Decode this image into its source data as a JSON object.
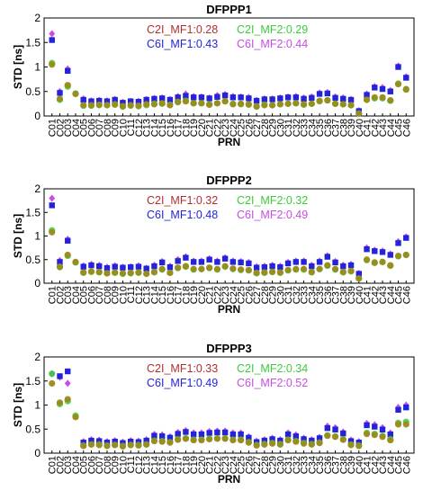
{
  "colors": {
    "C2I_MF1": "#b03030",
    "C6I_MF1": "#2323dc",
    "C2I_MF2": "#3ccc3c",
    "C6I_MF2": "#c84ce6",
    "overlap_fill": "#9c8a1e",
    "axis": "#000000"
  },
  "chart_data": [
    {
      "type": "scatter",
      "title": "DFPPP1",
      "xlabel": "PRN",
      "ylabel": "STD [ns]",
      "ylim": [
        0,
        2
      ],
      "yticks": [
        "0",
        "0.5",
        "1",
        "1.5",
        "2"
      ],
      "grid": false,
      "legend": [
        {
          "key": "C2I_MF1",
          "label": "C2I_MF1:0.28"
        },
        {
          "key": "C2I_MF2",
          "label": "C2I_MF2:0.29"
        },
        {
          "key": "C6I_MF1",
          "label": "C6I_MF1:0.43"
        },
        {
          "key": "C6I_MF2",
          "label": "C6I_MF2:0.44"
        }
      ],
      "categories": [
        "C01",
        "C02",
        "C03",
        "C04",
        "C05",
        "C06",
        "C07",
        "C08",
        "C09",
        "C10",
        "C11",
        "C12",
        "C13",
        "C14",
        "C15",
        "C16",
        "C17",
        "C18",
        "C19",
        "C20",
        "C21",
        "C22",
        "C23",
        "C24",
        "C25",
        "C26",
        "C27",
        "C28",
        "C29",
        "C30",
        "C31",
        "C32",
        "C33",
        "C34",
        "C35",
        "C36",
        "C37",
        "C38",
        "C39",
        "C40",
        "C41",
        "C42",
        "C43",
        "C44",
        "C45",
        "C46"
      ],
      "series": [
        {
          "key": "C2I_MF1",
          "values": [
            1.05,
            0.35,
            0.63,
            0.45,
            0.22,
            0.22,
            0.23,
            0.22,
            0.24,
            0.2,
            0.22,
            0.21,
            0.24,
            0.24,
            0.26,
            0.22,
            0.29,
            0.3,
            0.26,
            0.26,
            0.23,
            0.26,
            0.3,
            0.24,
            0.25,
            0.24,
            0.2,
            0.22,
            0.22,
            0.24,
            0.25,
            0.26,
            0.24,
            0.25,
            0.31,
            0.32,
            0.25,
            0.24,
            0.22,
            0.05,
            0.33,
            0.38,
            0.38,
            0.32,
            0.65,
            0.54
          ]
        },
        {
          "key": "C2I_MF2",
          "values": [
            1.08,
            0.33,
            0.6,
            0.46,
            0.21,
            0.21,
            0.22,
            0.22,
            0.23,
            0.19,
            0.21,
            0.2,
            0.22,
            0.25,
            0.25,
            0.23,
            0.28,
            0.31,
            0.26,
            0.26,
            0.24,
            0.26,
            0.3,
            0.25,
            0.24,
            0.23,
            0.19,
            0.23,
            0.22,
            0.24,
            0.25,
            0.26,
            0.23,
            0.25,
            0.3,
            0.32,
            0.25,
            0.24,
            0.22,
            0.05,
            0.33,
            0.36,
            0.36,
            0.31,
            0.66,
            0.55
          ]
        },
        {
          "key": "C6I_MF1",
          "values": [
            1.55,
            0.47,
            0.92,
            null,
            0.33,
            0.3,
            0.31,
            0.3,
            0.33,
            0.27,
            0.3,
            0.29,
            0.33,
            0.35,
            0.36,
            0.33,
            0.38,
            0.41,
            0.38,
            0.38,
            0.36,
            0.39,
            0.42,
            0.38,
            0.38,
            0.36,
            0.31,
            0.34,
            0.34,
            0.36,
            0.38,
            0.38,
            0.35,
            0.37,
            0.45,
            0.46,
            0.37,
            0.35,
            0.33,
            0.1,
            0.43,
            0.58,
            0.55,
            0.5,
            1.0,
            0.78
          ]
        },
        {
          "key": "C6I_MF2",
          "values": [
            1.68,
            0.5,
            0.96,
            null,
            0.35,
            0.31,
            0.32,
            0.31,
            0.34,
            0.28,
            0.3,
            0.3,
            0.34,
            0.36,
            0.37,
            0.34,
            0.4,
            0.45,
            0.4,
            0.39,
            0.37,
            0.42,
            0.44,
            0.4,
            0.39,
            0.38,
            0.32,
            0.35,
            0.35,
            0.37,
            0.39,
            0.4,
            0.37,
            0.39,
            0.47,
            0.48,
            0.39,
            0.37,
            0.34,
            0.11,
            0.45,
            0.6,
            0.58,
            0.52,
            1.02,
            0.8
          ]
        }
      ]
    },
    {
      "type": "scatter",
      "title": "DFPPP2",
      "xlabel": "PRN",
      "ylabel": "STD [ns]",
      "ylim": [
        0,
        2
      ],
      "yticks": [
        "0",
        "0.5",
        "1",
        "1.5",
        "2"
      ],
      "grid": false,
      "legend": [
        {
          "key": "C2I_MF1",
          "label": "C2I_MF1:0.32"
        },
        {
          "key": "C2I_MF2",
          "label": "C2I_MF2:0.32"
        },
        {
          "key": "C6I_MF1",
          "label": "C6I_MF1:0.48"
        },
        {
          "key": "C6I_MF2",
          "label": "C6I_MF2:0.49"
        }
      ],
      "categories": [
        "C01",
        "C02",
        "C03",
        "C04",
        "C05",
        "C06",
        "C07",
        "C08",
        "C09",
        "C10",
        "C11",
        "C12",
        "C13",
        "C14",
        "C15",
        "C16",
        "C17",
        "C18",
        "C19",
        "C20",
        "C21",
        "C22",
        "C23",
        "C24",
        "C25",
        "C26",
        "C27",
        "C28",
        "C29",
        "C30",
        "C31",
        "C32",
        "C33",
        "C34",
        "C35",
        "C36",
        "C37",
        "C38",
        "C39",
        "C40",
        "C41",
        "C42",
        "C43",
        "C44",
        "C45",
        "C46"
      ],
      "series": [
        {
          "key": "C2I_MF1",
          "values": [
            1.08,
            0.35,
            0.6,
            0.45,
            0.23,
            0.25,
            0.24,
            0.21,
            0.23,
            0.21,
            0.22,
            0.23,
            0.2,
            0.24,
            0.3,
            0.22,
            0.33,
            0.36,
            0.3,
            0.3,
            0.33,
            0.3,
            0.36,
            0.31,
            0.29,
            0.28,
            0.22,
            0.23,
            0.24,
            0.23,
            0.28,
            0.3,
            0.3,
            0.24,
            0.3,
            0.38,
            0.3,
            0.24,
            0.26,
            0.1,
            0.5,
            0.44,
            0.45,
            0.38,
            0.58,
            0.6
          ]
        },
        {
          "key": "C2I_MF2",
          "values": [
            1.12,
            0.34,
            0.58,
            0.44,
            0.22,
            0.24,
            0.23,
            0.21,
            0.22,
            0.2,
            0.21,
            0.22,
            0.2,
            0.23,
            0.29,
            0.22,
            0.32,
            0.35,
            0.29,
            0.3,
            0.32,
            0.29,
            0.35,
            0.3,
            0.28,
            0.27,
            0.21,
            0.22,
            0.24,
            0.22,
            0.27,
            0.29,
            0.29,
            0.23,
            0.3,
            0.37,
            0.29,
            0.23,
            0.25,
            0.1,
            0.49,
            0.43,
            0.45,
            0.37,
            0.57,
            0.6
          ]
        },
        {
          "key": "C6I_MF1",
          "values": [
            1.65,
            0.45,
            0.9,
            null,
            0.35,
            0.38,
            0.36,
            0.32,
            0.35,
            0.33,
            0.34,
            0.35,
            0.31,
            0.36,
            0.44,
            0.34,
            0.47,
            0.54,
            0.45,
            0.45,
            0.5,
            0.45,
            0.52,
            0.45,
            0.44,
            0.42,
            0.33,
            0.34,
            0.36,
            0.34,
            0.42,
            0.45,
            0.45,
            0.36,
            0.45,
            0.56,
            0.44,
            0.36,
            0.38,
            0.2,
            0.72,
            0.68,
            0.66,
            0.6,
            0.85,
            0.96
          ]
        },
        {
          "key": "C6I_MF2",
          "values": [
            1.8,
            0.48,
            0.93,
            null,
            0.37,
            0.4,
            0.38,
            0.34,
            0.37,
            0.34,
            0.35,
            0.37,
            0.32,
            0.38,
            0.46,
            0.36,
            0.5,
            0.56,
            0.47,
            0.47,
            0.52,
            0.47,
            0.54,
            0.47,
            0.46,
            0.44,
            0.35,
            0.36,
            0.38,
            0.36,
            0.44,
            0.47,
            0.47,
            0.38,
            0.47,
            0.58,
            0.46,
            0.38,
            0.4,
            0.21,
            0.75,
            0.7,
            0.68,
            0.62,
            0.88,
            0.98
          ]
        }
      ]
    },
    {
      "type": "scatter",
      "title": "DFPPP3",
      "xlabel": "PRN",
      "ylabel": "STD [ns]",
      "ylim": [
        0,
        2
      ],
      "yticks": [
        "0",
        "0.5",
        "1",
        "1.5",
        "2"
      ],
      "grid": false,
      "legend": [
        {
          "key": "C2I_MF1",
          "label": "C2I_MF1:0.33"
        },
        {
          "key": "C2I_MF2",
          "label": "C2I_MF2:0.34"
        },
        {
          "key": "C6I_MF1",
          "label": "C6I_MF1:0.49"
        },
        {
          "key": "C6I_MF2",
          "label": "C6I_MF2:0.52"
        }
      ],
      "categories": [
        "C01",
        "C02",
        "C03",
        "C04",
        "C05",
        "C06",
        "C07",
        "C08",
        "C09",
        "C10",
        "C11",
        "C12",
        "C13",
        "C14",
        "C15",
        "C16",
        "C17",
        "C18",
        "C19",
        "C20",
        "C21",
        "C22",
        "C23",
        "C24",
        "C25",
        "C26",
        "C27",
        "C28",
        "C29",
        "C30",
        "C31",
        "C32",
        "C33",
        "C34",
        "C35",
        "C36",
        "C37",
        "C38",
        "C39",
        "C40",
        "C41",
        "C42",
        "C43",
        "C44",
        "C45",
        "C46"
      ],
      "series": [
        {
          "key": "C2I_MF1",
          "values": [
            1.45,
            1.05,
            1.12,
            0.75,
            0.15,
            0.18,
            0.17,
            0.15,
            0.17,
            0.14,
            0.17,
            0.16,
            0.18,
            0.25,
            0.24,
            0.22,
            0.28,
            0.3,
            0.27,
            0.27,
            0.29,
            0.3,
            0.3,
            0.27,
            0.27,
            0.22,
            0.16,
            0.18,
            0.2,
            0.18,
            0.27,
            0.24,
            0.2,
            0.18,
            0.21,
            0.36,
            0.34,
            0.28,
            0.17,
            0.15,
            0.4,
            0.38,
            0.34,
            0.27,
            0.6,
            0.6
          ]
        },
        {
          "key": "C2I_MF2",
          "values": [
            1.65,
            1.02,
            1.08,
            0.78,
            0.16,
            0.18,
            0.18,
            0.16,
            0.17,
            0.15,
            0.17,
            0.17,
            0.18,
            0.26,
            0.25,
            0.23,
            0.29,
            0.31,
            0.28,
            0.28,
            0.3,
            0.31,
            0.31,
            0.28,
            0.28,
            0.23,
            0.17,
            0.19,
            0.21,
            0.19,
            0.28,
            0.25,
            0.21,
            0.19,
            0.22,
            0.37,
            0.35,
            0.29,
            0.18,
            0.16,
            0.42,
            0.4,
            0.36,
            0.29,
            0.63,
            0.65
          ]
        },
        {
          "key": "C6I_MF1",
          "values": [
            null,
            1.6,
            1.7,
            null,
            0.22,
            0.26,
            0.25,
            0.22,
            0.24,
            0.21,
            0.24,
            0.23,
            0.26,
            0.36,
            0.35,
            0.32,
            0.4,
            0.44,
            0.39,
            0.39,
            0.42,
            0.43,
            0.43,
            0.39,
            0.39,
            0.32,
            0.23,
            0.26,
            0.29,
            0.26,
            0.39,
            0.35,
            0.29,
            0.26,
            0.31,
            0.52,
            0.49,
            0.41,
            0.25,
            0.22,
            0.58,
            0.55,
            0.49,
            0.39,
            0.9,
            0.95
          ]
        },
        {
          "key": "C6I_MF2",
          "values": [
            1.65,
            1.58,
            1.45,
            null,
            0.24,
            0.28,
            0.27,
            0.24,
            0.26,
            0.23,
            0.26,
            0.25,
            0.28,
            0.39,
            0.38,
            0.34,
            0.43,
            0.47,
            0.42,
            0.42,
            0.45,
            0.46,
            0.46,
            0.42,
            0.42,
            0.34,
            0.25,
            0.28,
            0.31,
            0.28,
            0.42,
            0.38,
            0.31,
            0.28,
            0.33,
            0.56,
            0.53,
            0.44,
            0.27,
            0.24,
            0.62,
            0.59,
            0.53,
            0.42,
            0.95,
            1.0
          ]
        }
      ]
    }
  ]
}
